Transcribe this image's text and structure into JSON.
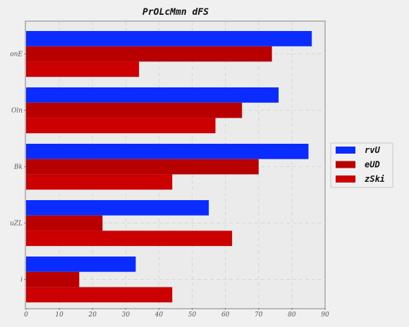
{
  "chart_data": {
    "type": "bar",
    "orientation": "horizontal",
    "title": "PrOLcMmn dFS",
    "xlabel": "",
    "ylabel": "",
    "xlim": [
      0,
      90
    ],
    "xticks": [
      0,
      10,
      20,
      30,
      40,
      50,
      60,
      70,
      80,
      90
    ],
    "grid": true,
    "legend_position": "right",
    "categories": [
      "onE",
      "Oln",
      "Bk",
      "uZL",
      "i"
    ],
    "series": [
      {
        "name": "rvU",
        "color": "#0a2cff",
        "values": [
          86,
          76,
          85,
          55,
          33
        ]
      },
      {
        "name": "eUD",
        "color": "#b80000",
        "values": [
          74,
          65,
          70,
          23,
          16
        ]
      },
      {
        "name": "zSki",
        "color": "#cc0000",
        "values": [
          34,
          57,
          44,
          62,
          44
        ]
      }
    ]
  }
}
